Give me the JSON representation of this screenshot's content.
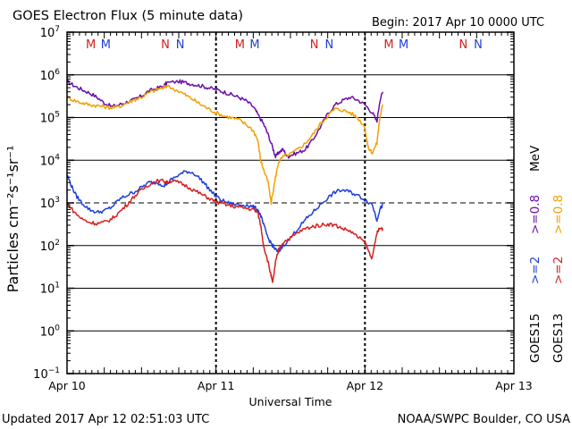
{
  "chart_data": {
    "type": "line",
    "title": "GOES Electron Flux (5 minute data)",
    "begin_label": "Begin: 2017 Apr 10 0000 UTC",
    "xlabel": "Universal Time",
    "ylabel": "Particles cm⁻²s⁻¹sr⁻¹",
    "y_scale": "log",
    "ylim": [
      0.1,
      10000000
    ],
    "y_ticks": [
      {
        "base": "10",
        "exp": "7",
        "value": 10000000
      },
      {
        "base": "10",
        "exp": "6",
        "value": 1000000
      },
      {
        "base": "10",
        "exp": "5",
        "value": 100000
      },
      {
        "base": "10",
        "exp": "4",
        "value": 10000
      },
      {
        "base": "10",
        "exp": "3",
        "value": 1000
      },
      {
        "base": "10",
        "exp": "2",
        "value": 100
      },
      {
        "base": "10",
        "exp": "1",
        "value": 10
      },
      {
        "base": "10",
        "exp": "0",
        "value": 1
      },
      {
        "base": "10",
        "exp": "−1",
        "value": 0.1
      }
    ],
    "xlim": [
      0,
      3
    ],
    "x_ticks": [
      {
        "label": "Apr 10",
        "day": 0
      },
      {
        "label": "Apr 11",
        "day": 1
      },
      {
        "label": "Apr 12",
        "day": 2
      },
      {
        "label": "Apr 13",
        "day": 3
      }
    ],
    "threshold": {
      "value": 1000,
      "style": "dashed"
    },
    "mn_markers": [
      {
        "label": "M",
        "day": 0.16,
        "color": "#d42020"
      },
      {
        "label": "M",
        "day": 0.26,
        "color": "#1f3fd8"
      },
      {
        "label": "N",
        "day": 0.66,
        "color": "#d42020"
      },
      {
        "label": "N",
        "day": 0.76,
        "color": "#1f3fd8"
      },
      {
        "label": "M",
        "day": 1.16,
        "color": "#d42020"
      },
      {
        "label": "M",
        "day": 1.26,
        "color": "#1f3fd8"
      },
      {
        "label": "N",
        "day": 1.66,
        "color": "#d42020"
      },
      {
        "label": "N",
        "day": 1.76,
        "color": "#1f3fd8"
      },
      {
        "label": "M",
        "day": 2.16,
        "color": "#d42020"
      },
      {
        "label": "M",
        "day": 2.26,
        "color": "#1f3fd8"
      },
      {
        "label": "N",
        "day": 2.66,
        "color": "#d42020"
      },
      {
        "label": "N",
        "day": 2.76,
        "color": "#1f3fd8"
      }
    ],
    "legend": [
      {
        "text": "GOES15  >=2  >=0.8 MeV"
      },
      {
        "text": "GOES13  >=2  >=0.8 MeV"
      }
    ],
    "legend_parts": {
      "goes15": "GOES15",
      "goes13": "GOES13",
      "ge2": ">=2",
      "ge08": ">=0.8",
      "mev": "MeV"
    },
    "series": [
      {
        "name": "GOES15 >=0.8 MeV",
        "color": "#6a0fa8",
        "x": [
          0.0,
          0.05,
          0.1,
          0.15,
          0.2,
          0.25,
          0.3,
          0.35,
          0.4,
          0.45,
          0.5,
          0.55,
          0.6,
          0.65,
          0.67,
          0.75,
          0.8,
          0.85,
          0.9,
          0.95,
          1.0,
          1.05,
          1.1,
          1.15,
          1.2,
          1.25,
          1.28,
          1.32,
          1.35,
          1.38,
          1.4,
          1.42,
          1.45,
          1.48,
          1.5,
          1.55,
          1.6,
          1.65,
          1.7,
          1.75,
          1.8,
          1.85,
          1.9,
          1.95,
          2.0,
          2.05,
          2.08,
          2.1,
          2.12
        ],
        "y": [
          700000,
          550000,
          450000,
          380000,
          300000,
          220000,
          180000,
          200000,
          230000,
          260000,
          320000,
          420000,
          480000,
          550000,
          650000,
          700000,
          650000,
          600000,
          550000,
          500000,
          450000,
          400000,
          350000,
          300000,
          250000,
          180000,
          120000,
          70000,
          40000,
          20000,
          12000,
          15000,
          18000,
          12000,
          13000,
          15000,
          18000,
          30000,
          60000,
          120000,
          200000,
          250000,
          300000,
          260000,
          200000,
          130000,
          80000,
          250000,
          400000
        ]
      },
      {
        "name": "GOES13 >=0.8 MeV",
        "color": "#f0a000",
        "x": [
          0.0,
          0.05,
          0.1,
          0.15,
          0.2,
          0.25,
          0.3,
          0.35,
          0.4,
          0.45,
          0.5,
          0.55,
          0.6,
          0.65,
          0.67,
          0.75,
          0.8,
          0.85,
          0.9,
          0.95,
          1.0,
          1.05,
          1.1,
          1.15,
          1.2,
          1.25,
          1.28,
          1.3,
          1.32,
          1.35,
          1.37,
          1.4,
          1.42,
          1.45,
          1.5,
          1.55,
          1.6,
          1.65,
          1.7,
          1.75,
          1.8,
          1.85,
          1.9,
          1.95,
          2.0,
          2.02,
          2.05,
          2.08,
          2.1,
          2.12
        ],
        "y": [
          300000,
          250000,
          220000,
          200000,
          190000,
          180000,
          170000,
          180000,
          220000,
          260000,
          300000,
          380000,
          450000,
          500000,
          550000,
          420000,
          330000,
          260000,
          200000,
          160000,
          130000,
          110000,
          100000,
          90000,
          70000,
          50000,
          30000,
          10000,
          6000,
          3000,
          1000,
          4000,
          9000,
          12000,
          14000,
          18000,
          25000,
          40000,
          70000,
          110000,
          160000,
          150000,
          130000,
          100000,
          60000,
          20000,
          15000,
          25000,
          100000,
          200000
        ]
      },
      {
        "name": "GOES15 >=2 MeV",
        "color": "#1f3fd8",
        "x": [
          0.0,
          0.03,
          0.06,
          0.1,
          0.15,
          0.2,
          0.25,
          0.3,
          0.35,
          0.4,
          0.45,
          0.5,
          0.55,
          0.6,
          0.65,
          0.67,
          0.7,
          0.75,
          0.8,
          0.85,
          0.9,
          0.95,
          1.0,
          1.05,
          1.1,
          1.15,
          1.2,
          1.25,
          1.28,
          1.3,
          1.32,
          1.35,
          1.38,
          1.4,
          1.42,
          1.45,
          1.5,
          1.55,
          1.6,
          1.65,
          1.7,
          1.75,
          1.8,
          1.85,
          1.9,
          1.95,
          2.0,
          2.05,
          2.08,
          2.1,
          2.12
        ],
        "y": [
          4500,
          2500,
          1500,
          1000,
          700,
          600,
          650,
          800,
          1200,
          1500,
          1800,
          2300,
          3000,
          3000,
          2600,
          2800,
          3500,
          4500,
          5500,
          5000,
          3500,
          2200,
          1400,
          1100,
          950,
          900,
          900,
          800,
          700,
          500,
          300,
          150,
          100,
          80,
          70,
          100,
          150,
          250,
          400,
          600,
          900,
          1300,
          1800,
          2000,
          1800,
          1500,
          1200,
          900,
          400,
          700,
          900
        ]
      },
      {
        "name": "GOES13 >=2 MeV",
        "color": "#d42020",
        "x": [
          0.0,
          0.05,
          0.1,
          0.15,
          0.2,
          0.25,
          0.3,
          0.35,
          0.4,
          0.45,
          0.5,
          0.55,
          0.6,
          0.65,
          0.67,
          0.7,
          0.75,
          0.8,
          0.85,
          0.9,
          0.95,
          1.0,
          1.05,
          1.1,
          1.15,
          1.2,
          1.25,
          1.28,
          1.3,
          1.32,
          1.35,
          1.37,
          1.38,
          1.4,
          1.42,
          1.45,
          1.5,
          1.55,
          1.6,
          1.65,
          1.7,
          1.75,
          1.8,
          1.85,
          1.9,
          1.95,
          2.0,
          2.02,
          2.05,
          2.08,
          2.1,
          2.12
        ],
        "y": [
          1000,
          600,
          420,
          350,
          330,
          350,
          420,
          600,
          900,
          1400,
          2000,
          2700,
          3200,
          3300,
          3000,
          3300,
          3000,
          2500,
          2000,
          1600,
          1300,
          1050,
          950,
          850,
          800,
          750,
          700,
          600,
          300,
          100,
          40,
          20,
          13,
          40,
          80,
          120,
          150,
          200,
          250,
          280,
          300,
          320,
          300,
          250,
          220,
          160,
          120,
          80,
          50,
          200,
          250,
          250
        ]
      }
    ]
  },
  "footer": {
    "updated": "Updated 2017 Apr 12 02:51:03 UTC",
    "credit": "NOAA/SWPC Boulder, CO USA"
  }
}
